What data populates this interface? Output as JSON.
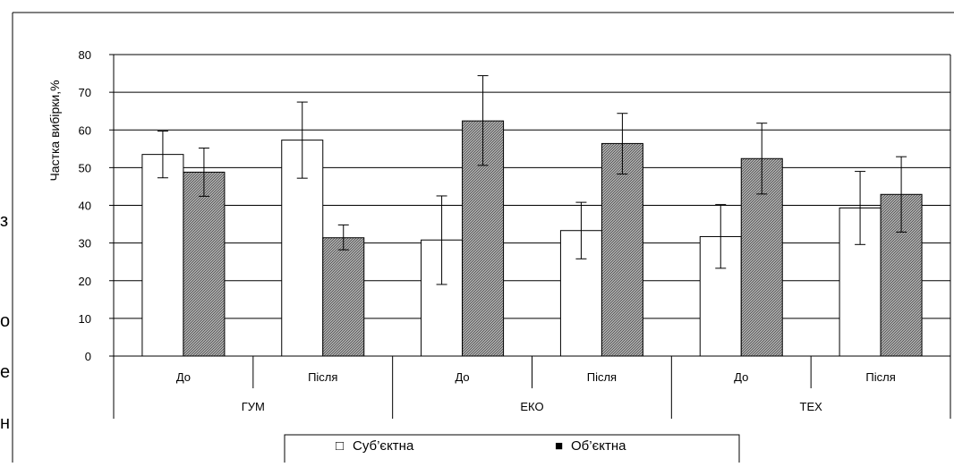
{
  "chart_data": {
    "type": "bar",
    "ylabel": "Частка вибірки,%",
    "ylim": [
      0,
      80
    ],
    "yticks": [
      0,
      10,
      20,
      30,
      40,
      50,
      60,
      70,
      80
    ],
    "grid": true,
    "groups": [
      {
        "label": "ГУМ",
        "subcategories": [
          "До",
          "Після"
        ]
      },
      {
        "label": "ЕКО",
        "subcategories": [
          "До",
          "Після"
        ]
      },
      {
        "label": "ТЕХ",
        "subcategories": [
          "До",
          "Після"
        ]
      }
    ],
    "categories": [
      "ГУМ До",
      "ГУМ Після",
      "ЕКО До",
      "ЕКО Після",
      "ТЕХ До",
      "ТЕХ Після"
    ],
    "series": [
      {
        "name": "Суб’єктна",
        "fill": "white",
        "values": [
          53.5,
          57.3,
          30.8,
          33.3,
          31.7,
          39.3
        ],
        "error_low": [
          47.3,
          47.2,
          19.0,
          25.8,
          23.3,
          29.6
        ],
        "error_high": [
          59.7,
          67.4,
          42.5,
          40.8,
          40.2,
          49.0
        ]
      },
      {
        "name": "Об’єктна",
        "fill": "gray-pattern",
        "values": [
          48.8,
          31.4,
          62.4,
          56.4,
          52.4,
          42.9
        ],
        "error_low": [
          42.4,
          28.2,
          50.6,
          48.3,
          43.0,
          32.9
        ],
        "error_high": [
          55.2,
          34.8,
          74.4,
          64.4,
          61.8,
          52.9
        ]
      }
    ],
    "legend": {
      "position": "bottom",
      "items": [
        {
          "label": "Суб’єктна",
          "swatch": "□"
        },
        {
          "label": "Об’єктна",
          "swatch": "■"
        }
      ]
    }
  },
  "background_text": [
    "з",
    "о",
    "е",
    "н"
  ]
}
